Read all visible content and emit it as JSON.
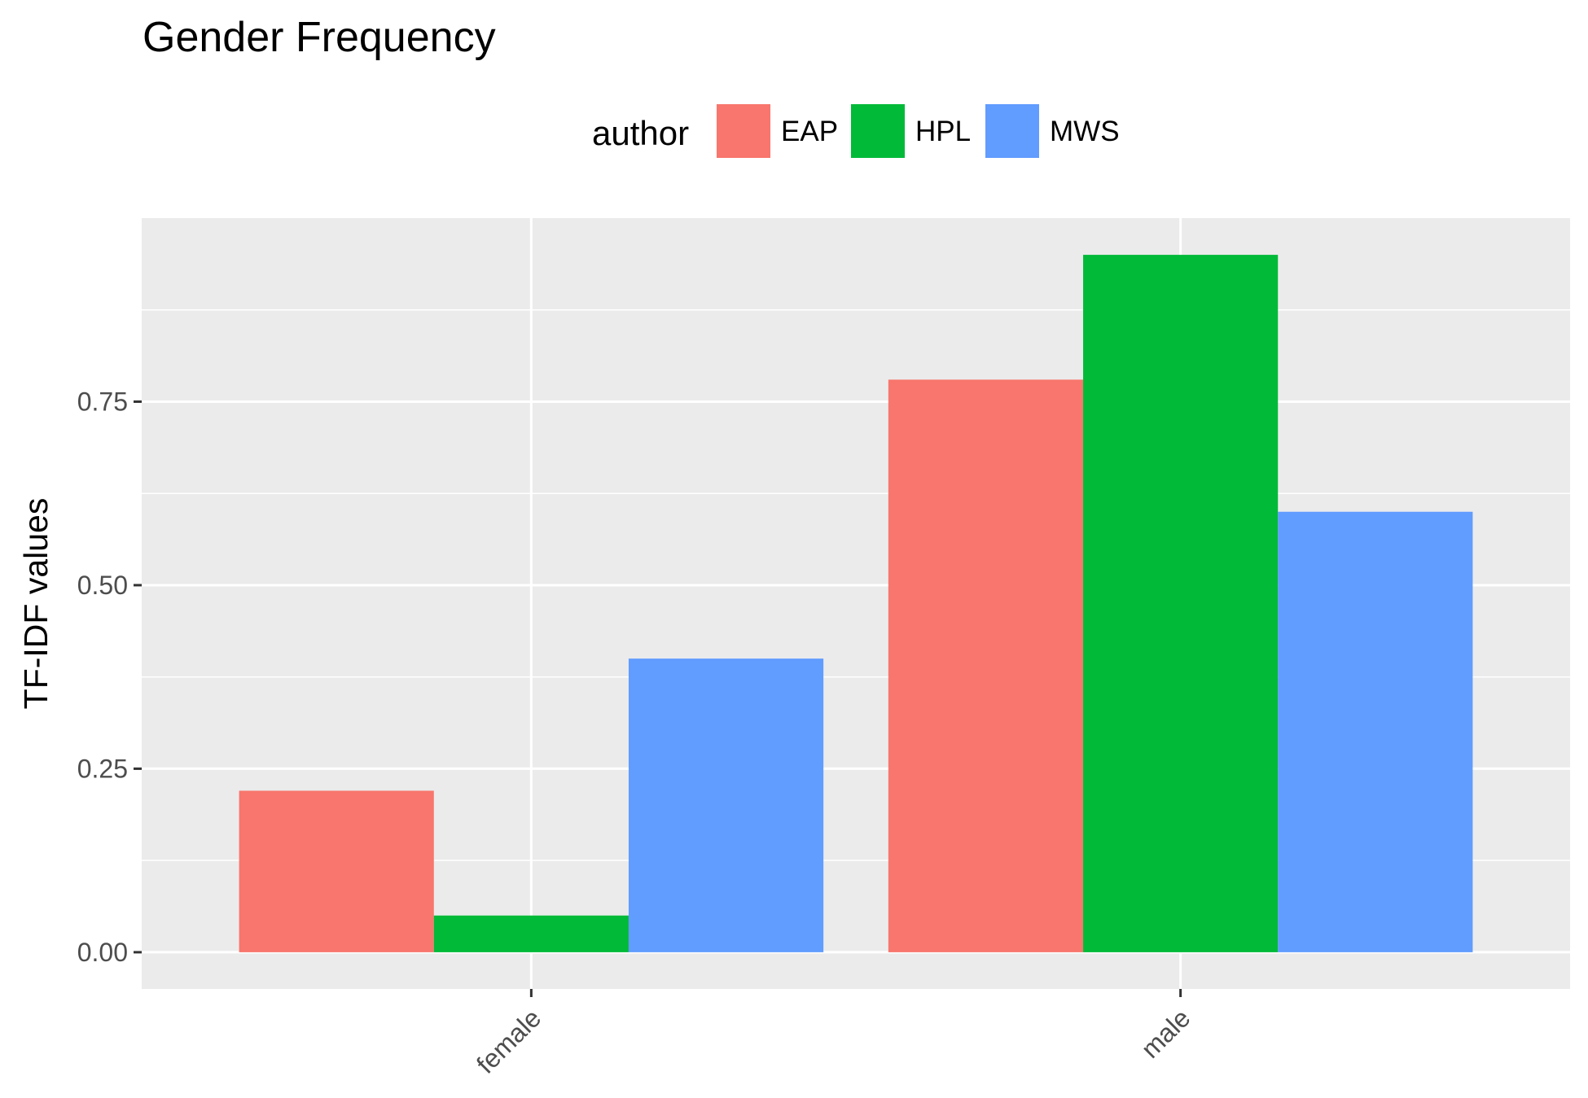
{
  "chart_data": {
    "type": "bar",
    "title": "Gender Frequency",
    "xlabel": "",
    "ylabel": "TF-IDF values",
    "categories": [
      "female",
      "male"
    ],
    "legend": {
      "title": "author",
      "position": "top"
    },
    "series": [
      {
        "name": "EAP",
        "color": "#F8766D",
        "values": [
          0.22,
          0.78
        ]
      },
      {
        "name": "HPL",
        "color": "#00BA38",
        "values": [
          0.05,
          0.95
        ]
      },
      {
        "name": "MWS",
        "color": "#619CFF",
        "values": [
          0.4,
          0.6
        ]
      }
    ],
    "ylim": [
      -0.05,
      1.0
    ],
    "yticks": [
      0.0,
      0.25,
      0.5,
      0.75
    ],
    "ytick_labels": [
      "0.00",
      "0.25",
      "0.50",
      "0.75"
    ],
    "grid": true
  }
}
